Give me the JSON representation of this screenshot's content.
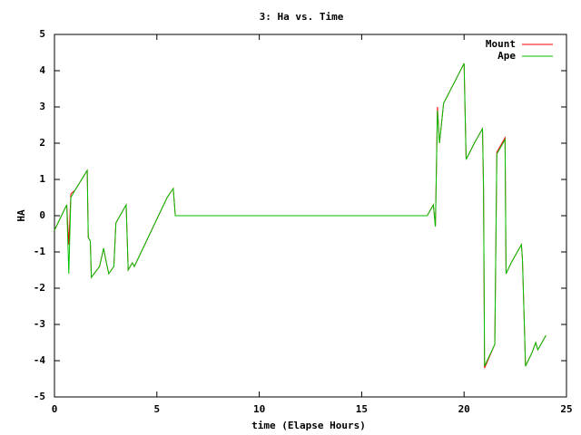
{
  "chart_data": {
    "type": "line",
    "title": "3: Ha vs. Time",
    "x_label": "time (Elapse Hours)",
    "y_label": "HA",
    "x": [
      0,
      0.6,
      0.7,
      0.8,
      1.0,
      1.6,
      1.65,
      1.75,
      1.8,
      2.2,
      2.4,
      2.5,
      2.65,
      2.9,
      3.0,
      3.5,
      3.6,
      3.8,
      3.9,
      5.5,
      5.8,
      5.9,
      18.2,
      18.5,
      18.6,
      18.7,
      18.8,
      19.0,
      20.0,
      20.1,
      20.5,
      20.9,
      20.95,
      21.0,
      21.5,
      21.6,
      22.0,
      22.05,
      22.3,
      22.8,
      22.85,
      23.0,
      23.3,
      23.5,
      23.6,
      24.0
    ],
    "series": [
      {
        "name": "Mount",
        "color": "#ff0000",
        "values": [
          -0.4,
          0.3,
          -0.8,
          0.6,
          0.7,
          1.25,
          -0.6,
          -0.7,
          -1.7,
          -1.4,
          -0.9,
          -1.2,
          -1.6,
          -1.4,
          -0.2,
          0.3,
          -1.5,
          -1.3,
          -1.4,
          0.5,
          0.75,
          0,
          0,
          0.3,
          -0.3,
          3.0,
          2.0,
          3.1,
          4.2,
          1.55,
          2.0,
          2.4,
          0.7,
          -4.2,
          -3.55,
          1.75,
          2.15,
          -1.6,
          -1.3,
          -0.8,
          -1.2,
          -4.15,
          -3.8,
          -3.5,
          -3.7,
          -3.3
        ]
      },
      {
        "name": "Ape",
        "color": "#00c000",
        "values": [
          -0.4,
          0.3,
          -1.6,
          0.5,
          0.7,
          1.25,
          -0.6,
          -0.7,
          -1.7,
          -1.4,
          -0.9,
          -1.2,
          -1.6,
          -1.4,
          -0.2,
          0.3,
          -1.5,
          -1.3,
          -1.4,
          0.5,
          0.75,
          0,
          0,
          0.3,
          -0.3,
          2.9,
          2.0,
          3.1,
          4.2,
          1.55,
          2.0,
          2.4,
          0.8,
          -4.15,
          -3.55,
          1.7,
          2.1,
          -1.6,
          -1.3,
          -0.8,
          -1.2,
          -4.15,
          -3.8,
          -3.5,
          -3.7,
          -3.3
        ]
      }
    ],
    "xlim": [
      0,
      25
    ],
    "xticks": [
      0,
      5,
      10,
      15,
      20,
      25
    ],
    "ylim": [
      -5,
      5
    ],
    "yticks": [
      -5,
      -4,
      -3,
      -2,
      -1,
      0,
      1,
      2,
      3,
      4,
      5
    ],
    "legend": "top-right"
  }
}
